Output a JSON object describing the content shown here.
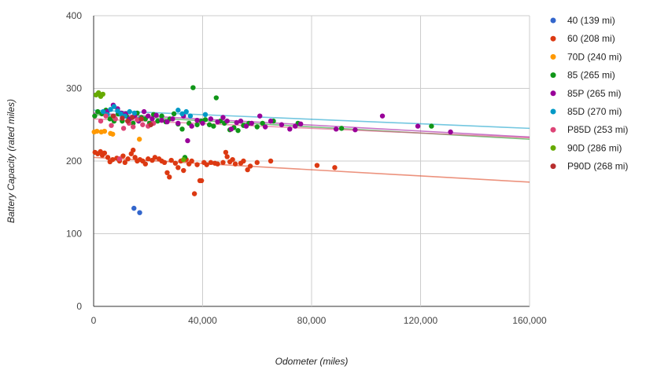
{
  "chart_data": {
    "type": "scatter",
    "title": "",
    "xlabel": "Odometer (miles)",
    "ylabel": "Battery Capacity (rated miles)",
    "xlim": [
      0,
      160000
    ],
    "ylim": [
      0,
      400
    ],
    "x_ticks": [
      0,
      40000,
      80000,
      120000,
      160000
    ],
    "y_ticks": [
      0,
      100,
      200,
      300,
      400
    ],
    "x_tick_labels": [
      "0",
      "40,000",
      "80,000",
      "120,000",
      "160,000"
    ],
    "y_tick_labels": [
      "0",
      "100",
      "200",
      "300",
      "400"
    ],
    "grid": true,
    "legend": "right",
    "series": [
      {
        "name": "40 (139 mi)",
        "color": "#3366cc",
        "points": [
          [
            14800,
            135
          ],
          [
            16900,
            129
          ]
        ]
      },
      {
        "name": "60 (208 mi)",
        "color": "#dc3912",
        "trend": [
          [
            0,
            205
          ],
          [
            160000,
            171
          ]
        ],
        "points": [
          [
            500,
            212
          ],
          [
            1500,
            210
          ],
          [
            2500,
            213
          ],
          [
            3200,
            208
          ],
          [
            4000,
            211
          ],
          [
            5200,
            205
          ],
          [
            6000,
            199
          ],
          [
            7000,
            202
          ],
          [
            8500,
            204
          ],
          [
            9500,
            200
          ],
          [
            10800,
            207
          ],
          [
            11500,
            198
          ],
          [
            12600,
            203
          ],
          [
            13800,
            210
          ],
          [
            14500,
            215
          ],
          [
            15200,
            205
          ],
          [
            16000,
            200
          ],
          [
            17000,
            202
          ],
          [
            18000,
            200
          ],
          [
            19000,
            196
          ],
          [
            20000,
            203
          ],
          [
            21500,
            201
          ],
          [
            22500,
            205
          ],
          [
            24000,
            203
          ],
          [
            25000,
            200
          ],
          [
            26000,
            198
          ],
          [
            27000,
            184
          ],
          [
            27800,
            178
          ],
          [
            28500,
            201
          ],
          [
            30000,
            197
          ],
          [
            31000,
            191
          ],
          [
            32000,
            200
          ],
          [
            33000,
            187
          ],
          [
            34000,
            202
          ],
          [
            35000,
            196
          ],
          [
            36000,
            200
          ],
          [
            37000,
            155
          ],
          [
            38000,
            195
          ],
          [
            39000,
            173
          ],
          [
            39600,
            173
          ],
          [
            40500,
            198
          ],
          [
            41500,
            195
          ],
          [
            43000,
            198
          ],
          [
            44500,
            197
          ],
          [
            45500,
            196
          ],
          [
            47500,
            198
          ],
          [
            48500,
            212
          ],
          [
            49000,
            206
          ],
          [
            50000,
            199
          ],
          [
            51000,
            202
          ],
          [
            52000,
            196
          ],
          [
            54000,
            197
          ],
          [
            55000,
            200
          ],
          [
            56500,
            188
          ],
          [
            57500,
            193
          ],
          [
            60000,
            198
          ],
          [
            65000,
            200
          ],
          [
            82000,
            194
          ],
          [
            88500,
            191
          ]
        ]
      },
      {
        "name": "70D (240 mi)",
        "color": "#ff9900",
        "points": [
          [
            200,
            240
          ],
          [
            1200,
            241
          ],
          [
            2800,
            240
          ],
          [
            4000,
            241
          ],
          [
            6200,
            238
          ],
          [
            7000,
            237
          ],
          [
            16800,
            230
          ]
        ]
      },
      {
        "name": "85 (265 mi)",
        "color": "#109618",
        "trend": [
          [
            0,
            264
          ],
          [
            160000,
            230
          ]
        ],
        "points": [
          [
            400,
            262
          ],
          [
            1500,
            268
          ],
          [
            3000,
            265
          ],
          [
            4500,
            270
          ],
          [
            6000,
            258
          ],
          [
            7500,
            255
          ],
          [
            9000,
            265
          ],
          [
            10500,
            255
          ],
          [
            12000,
            262
          ],
          [
            13000,
            258
          ],
          [
            14500,
            252
          ],
          [
            16000,
            266
          ],
          [
            17500,
            260
          ],
          [
            19000,
            258
          ],
          [
            20500,
            252
          ],
          [
            22000,
            264
          ],
          [
            23500,
            255
          ],
          [
            25000,
            262
          ],
          [
            26500,
            254
          ],
          [
            28000,
            258
          ],
          [
            29500,
            265
          ],
          [
            31000,
            251
          ],
          [
            32500,
            244
          ],
          [
            33500,
            205
          ],
          [
            35000,
            252
          ],
          [
            36500,
            301
          ],
          [
            38000,
            250
          ],
          [
            39500,
            255
          ],
          [
            41000,
            257
          ],
          [
            42500,
            250
          ],
          [
            44000,
            248
          ],
          [
            45000,
            287
          ],
          [
            46500,
            255
          ],
          [
            48000,
            252
          ],
          [
            50000,
            243
          ],
          [
            51500,
            246
          ],
          [
            53000,
            242
          ],
          [
            55000,
            249
          ],
          [
            57000,
            252
          ],
          [
            60000,
            247
          ],
          [
            62000,
            252
          ],
          [
            66000,
            255
          ],
          [
            75000,
            252
          ],
          [
            91000,
            245
          ],
          [
            124000,
            248
          ]
        ]
      },
      {
        "name": "85P (265 mi)",
        "color": "#990099",
        "trend": [
          [
            0,
            266
          ],
          [
            160000,
            233
          ]
        ],
        "points": [
          [
            5000,
            268
          ],
          [
            7200,
            277
          ],
          [
            8800,
            272
          ],
          [
            10200,
            266
          ],
          [
            11800,
            265
          ],
          [
            13200,
            258
          ],
          [
            15000,
            262
          ],
          [
            16500,
            255
          ],
          [
            18500,
            268
          ],
          [
            20000,
            262
          ],
          [
            21500,
            258
          ],
          [
            23000,
            263
          ],
          [
            25000,
            256
          ],
          [
            27000,
            254
          ],
          [
            29000,
            258
          ],
          [
            31000,
            252
          ],
          [
            33000,
            262
          ],
          [
            34500,
            228
          ],
          [
            36000,
            248
          ],
          [
            38000,
            256
          ],
          [
            40000,
            252
          ],
          [
            43000,
            258
          ],
          [
            45500,
            254
          ],
          [
            47500,
            260
          ],
          [
            49000,
            255
          ],
          [
            50500,
            244
          ],
          [
            52500,
            253
          ],
          [
            54000,
            255
          ],
          [
            56000,
            248
          ],
          [
            58000,
            252
          ],
          [
            61000,
            262
          ],
          [
            63000,
            247
          ],
          [
            65000,
            255
          ],
          [
            69000,
            250
          ],
          [
            72000,
            244
          ],
          [
            74000,
            248
          ],
          [
            76000,
            251
          ],
          [
            89000,
            244
          ],
          [
            96000,
            243
          ],
          [
            106000,
            262
          ],
          [
            119000,
            248
          ],
          [
            131000,
            240
          ]
        ]
      },
      {
        "name": "85D (270 mi)",
        "color": "#0099c6",
        "trend": [
          [
            0,
            270
          ],
          [
            160000,
            245
          ]
        ],
        "points": [
          [
            3500,
            268
          ],
          [
            5000,
            264
          ],
          [
            6200,
            271
          ],
          [
            7500,
            275
          ],
          [
            8800,
            269
          ],
          [
            10000,
            265
          ],
          [
            11500,
            262
          ],
          [
            13200,
            268
          ],
          [
            15000,
            266
          ],
          [
            17000,
            258
          ],
          [
            31000,
            270
          ],
          [
            32500,
            265
          ],
          [
            34000,
            268
          ],
          [
            35500,
            262
          ],
          [
            41000,
            264
          ]
        ]
      },
      {
        "name": "P85D (253 mi)",
        "color": "#dd4477",
        "trend": [
          [
            0,
            258
          ],
          [
            160000,
            232
          ]
        ],
        "points": [
          [
            2600,
            255
          ],
          [
            4500,
            262
          ],
          [
            6500,
            249
          ],
          [
            8000,
            258
          ],
          [
            9500,
            203
          ],
          [
            11000,
            245
          ],
          [
            13000,
            252
          ],
          [
            14500,
            247
          ],
          [
            16000,
            257
          ],
          [
            18000,
            250
          ],
          [
            20000,
            248
          ],
          [
            22000,
            252
          ]
        ]
      },
      {
        "name": "90D (286 mi)",
        "color": "#66aa00",
        "points": [
          [
            900,
            291
          ],
          [
            1800,
            294
          ],
          [
            2600,
            289
          ],
          [
            3400,
            292
          ],
          [
            33000,
            202
          ]
        ]
      },
      {
        "name": "P90D (268 mi)",
        "color": "#b82e2e",
        "points": [
          [
            7200,
            262
          ],
          [
            10500,
            259
          ],
          [
            12500,
            255
          ],
          [
            14200,
            260
          ],
          [
            17500,
            258
          ],
          [
            21000,
            250
          ]
        ]
      }
    ]
  }
}
